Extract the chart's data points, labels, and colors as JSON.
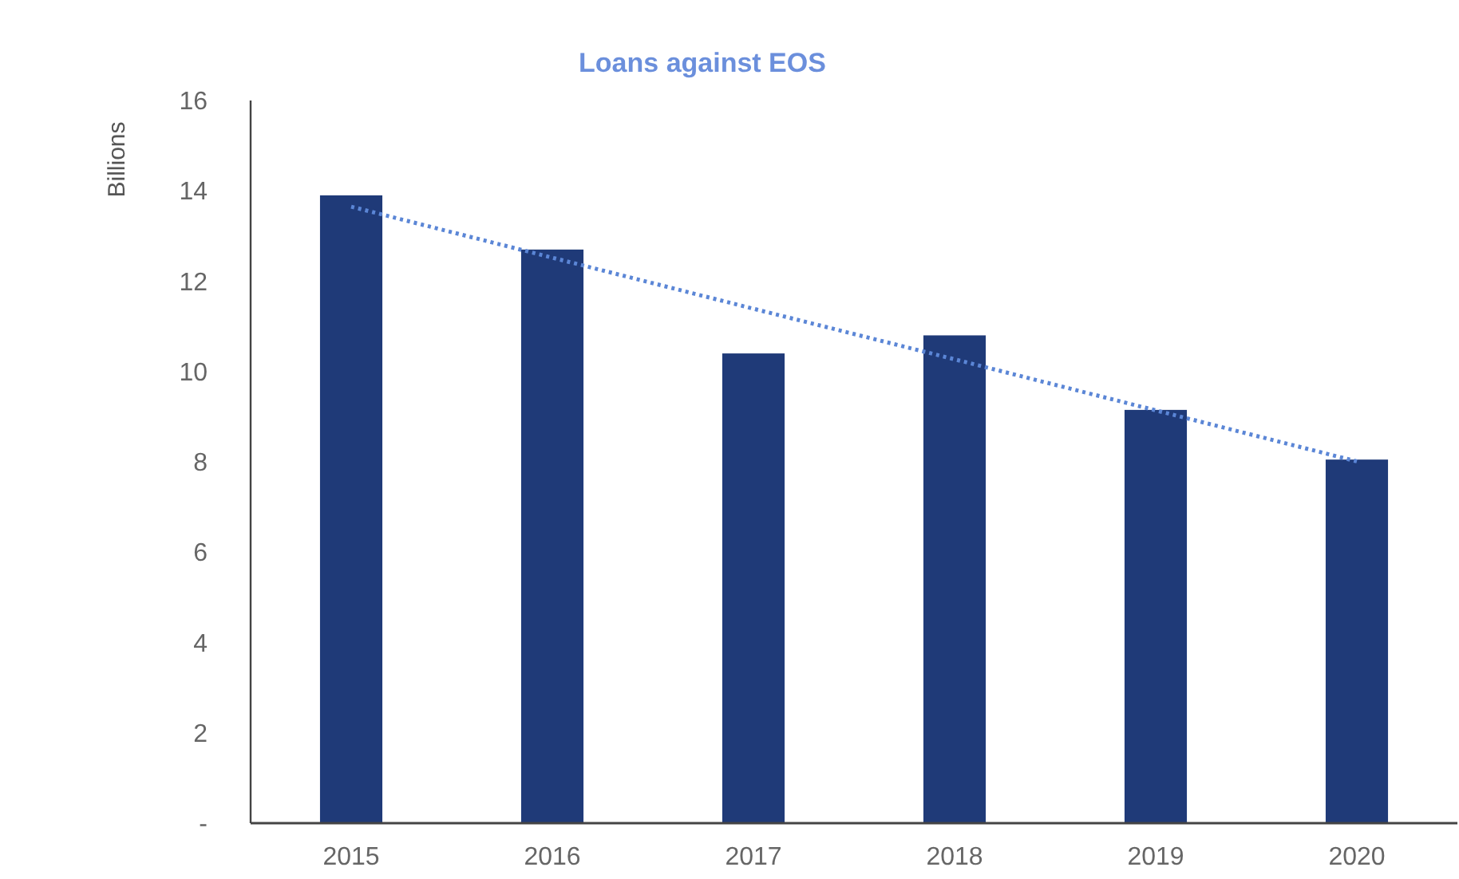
{
  "chart_data": {
    "type": "bar",
    "title": "Loans against EOS",
    "ylabel": "Billions",
    "categories": [
      "2015",
      "2016",
      "2017",
      "2018",
      "2019",
      "2020"
    ],
    "series": [
      {
        "color": "#1f3a78",
        "values": [
          13.9,
          12.7,
          10.4,
          10.8,
          9.15,
          8.05
        ]
      },
      {
        "type": "line",
        "color": "#5b86d6",
        "line_style": "dotted",
        "marker": "none",
        "values": [
          13.65,
          12.52,
          11.39,
          10.27,
          9.14,
          8.01
        ]
      }
    ],
    "ylim": [
      0,
      16
    ],
    "yticks": [
      {
        "value": 0,
        "label": "-"
      },
      2,
      4,
      6,
      8,
      10,
      12,
      14,
      16
    ],
    "grid": false
  }
}
